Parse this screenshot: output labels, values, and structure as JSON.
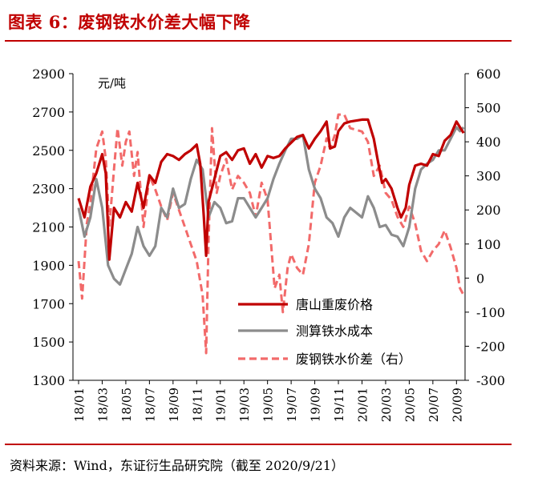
{
  "header": {
    "title": "图表 6：废钢铁水价差大幅下降"
  },
  "footer": {
    "source": "资料来源：Wind，东证衍生品研究院（截至 2020/9/21）"
  },
  "chart_data": {
    "type": "line",
    "left_axis": {
      "unit": "元/吨",
      "ylim": [
        1300,
        2900
      ],
      "ticks": [
        1300,
        1500,
        1700,
        1900,
        2100,
        2300,
        2500,
        2700,
        2900
      ]
    },
    "right_axis": {
      "ylim": [
        -300,
        600
      ],
      "ticks": [
        -300,
        -200,
        -100,
        0,
        100,
        200,
        300,
        400,
        500,
        600
      ]
    },
    "x_ticks": [
      "18/01",
      "18/03",
      "18/05",
      "18/07",
      "18/09",
      "18/11",
      "19/01",
      "19/03",
      "19/05",
      "19/07",
      "19/09",
      "19/11",
      "20/01",
      "20/03",
      "20/05",
      "20/07",
      "20/09"
    ],
    "legend_position": "lower-middle",
    "grid": false,
    "series": [
      {
        "name": "唐山重废价格",
        "axis": "left",
        "color": "#c00000",
        "dash": "solid",
        "points": [
          [
            "18/01",
            2250
          ],
          [
            "18/01.5",
            2150
          ],
          [
            "18/02",
            2310
          ],
          [
            "18/02.5",
            2380
          ],
          [
            "18/03",
            2480
          ],
          [
            "18/03.3",
            2380
          ],
          [
            "18/03.6",
            1930
          ],
          [
            "18/04",
            2200
          ],
          [
            "18/04.5",
            2150
          ],
          [
            "18/05",
            2230
          ],
          [
            "18/05.5",
            2180
          ],
          [
            "18/06",
            2330
          ],
          [
            "18/06.5",
            2200
          ],
          [
            "18/07",
            2370
          ],
          [
            "18/07.5",
            2330
          ],
          [
            "18/08",
            2440
          ],
          [
            "18/08.5",
            2480
          ],
          [
            "18/09",
            2470
          ],
          [
            "18/09.5",
            2450
          ],
          [
            "18/10",
            2480
          ],
          [
            "18/10.5",
            2500
          ],
          [
            "18/11",
            2530
          ],
          [
            "18/11.3",
            2430
          ],
          [
            "18/11.6",
            2160
          ],
          [
            "18/11.8",
            1950
          ],
          [
            "18/12",
            2230
          ],
          [
            "18/12.5",
            2350
          ],
          [
            "19/01",
            2470
          ],
          [
            "19/01.5",
            2490
          ],
          [
            "19/02",
            2450
          ],
          [
            "19/02.5",
            2500
          ],
          [
            "19/03",
            2510
          ],
          [
            "19/03.5",
            2430
          ],
          [
            "19/04",
            2480
          ],
          [
            "19/04.5",
            2410
          ],
          [
            "19/05",
            2470
          ],
          [
            "19/05.5",
            2460
          ],
          [
            "19/06",
            2470
          ],
          [
            "19/06.5",
            2510
          ],
          [
            "19/07",
            2540
          ],
          [
            "19/07.5",
            2570
          ],
          [
            "19/08",
            2580
          ],
          [
            "19/08.5",
            2510
          ],
          [
            "19/09",
            2560
          ],
          [
            "19/09.5",
            2600
          ],
          [
            "19/10",
            2650
          ],
          [
            "19/10.3",
            2510
          ],
          [
            "19/10.7",
            2520
          ],
          [
            "19/11",
            2600
          ],
          [
            "19/11.5",
            2640
          ],
          [
            "19/12",
            2650
          ],
          [
            "20/01",
            2660
          ],
          [
            "20/01.5",
            2660
          ],
          [
            "20/02",
            2560
          ],
          [
            "20/02.3",
            2460
          ],
          [
            "20/02.7",
            2330
          ],
          [
            "20/03",
            2350
          ],
          [
            "20/03.5",
            2300
          ],
          [
            "20/04",
            2200
          ],
          [
            "20/04.3",
            2150
          ],
          [
            "20/04.7",
            2200
          ],
          [
            "20/05",
            2320
          ],
          [
            "20/05.5",
            2420
          ],
          [
            "20/06",
            2430
          ],
          [
            "20/06.5",
            2420
          ],
          [
            "20/07",
            2480
          ],
          [
            "20/07.5",
            2470
          ],
          [
            "20/08",
            2550
          ],
          [
            "20/08.5",
            2580
          ],
          [
            "20/09",
            2650
          ],
          [
            "20/09.3",
            2620
          ],
          [
            "20/09.6",
            2590
          ]
        ]
      },
      {
        "name": "测算铁水成本",
        "axis": "left",
        "color": "#8c8c8c",
        "dash": "solid",
        "points": [
          [
            "18/01",
            2200
          ],
          [
            "18/01.5",
            2050
          ],
          [
            "18/02",
            2150
          ],
          [
            "18/02.5",
            2350
          ],
          [
            "18/03",
            2200
          ],
          [
            "18/03.5",
            1900
          ],
          [
            "18/04",
            1830
          ],
          [
            "18/04.5",
            1800
          ],
          [
            "18/05",
            1880
          ],
          [
            "18/05.5",
            1960
          ],
          [
            "18/06",
            2100
          ],
          [
            "18/06.5",
            2000
          ],
          [
            "18/07",
            1950
          ],
          [
            "18/07.5",
            2000
          ],
          [
            "18/08",
            2200
          ],
          [
            "18/08.5",
            2150
          ],
          [
            "18/09",
            2300
          ],
          [
            "18/09.5",
            2200
          ],
          [
            "18/10",
            2220
          ],
          [
            "18/10.5",
            2350
          ],
          [
            "18/11",
            2450
          ],
          [
            "18/11.5",
            2400
          ],
          [
            "18/12",
            2150
          ],
          [
            "18/12.5",
            2230
          ],
          [
            "19/01",
            2200
          ],
          [
            "19/01.5",
            2120
          ],
          [
            "19/02",
            2130
          ],
          [
            "19/02.5",
            2250
          ],
          [
            "19/03",
            2250
          ],
          [
            "19/03.5",
            2200
          ],
          [
            "19/04",
            2150
          ],
          [
            "19/04.5",
            2200
          ],
          [
            "19/05",
            2250
          ],
          [
            "19/05.5",
            2350
          ],
          [
            "19/06",
            2430
          ],
          [
            "19/06.5",
            2500
          ],
          [
            "19/07",
            2560
          ],
          [
            "19/07.5",
            2560
          ],
          [
            "19/08",
            2580
          ],
          [
            "19/08.5",
            2400
          ],
          [
            "19/09",
            2300
          ],
          [
            "19/09.5",
            2250
          ],
          [
            "19/10",
            2150
          ],
          [
            "19/10.5",
            2120
          ],
          [
            "19/11",
            2050
          ],
          [
            "19/11.5",
            2150
          ],
          [
            "19/12",
            2200
          ],
          [
            "20/01",
            2150
          ],
          [
            "20/01.5",
            2260
          ],
          [
            "20/02",
            2200
          ],
          [
            "20/02.5",
            2100
          ],
          [
            "20/03",
            2110
          ],
          [
            "20/03.5",
            2060
          ],
          [
            "20/04",
            2050
          ],
          [
            "20/04.5",
            2000
          ],
          [
            "20/05",
            2100
          ],
          [
            "20/05.5",
            2300
          ],
          [
            "20/06",
            2400
          ],
          [
            "20/06.5",
            2430
          ],
          [
            "20/07",
            2450
          ],
          [
            "20/07.5",
            2500
          ],
          [
            "20/08",
            2500
          ],
          [
            "20/08.5",
            2560
          ],
          [
            "20/09",
            2620
          ],
          [
            "20/09.3",
            2600
          ],
          [
            "20/09.6",
            2620
          ]
        ]
      },
      {
        "name": "废钢铁水价差（右）",
        "axis": "right",
        "color": "#f26a6a",
        "dash": "dashed",
        "points": [
          [
            "18/01",
            50
          ],
          [
            "18/01.3",
            -60
          ],
          [
            "18/01.7",
            160
          ],
          [
            "18/02",
            220
          ],
          [
            "18/02.5",
            380
          ],
          [
            "18/03",
            430
          ],
          [
            "18/03.3",
            350
          ],
          [
            "18/03.6",
            150
          ],
          [
            "18/04",
            320
          ],
          [
            "18/04.3",
            440
          ],
          [
            "18/04.7",
            330
          ],
          [
            "18/05",
            400
          ],
          [
            "18/05.3",
            430
          ],
          [
            "18/05.7",
            300
          ],
          [
            "18/06",
            370
          ],
          [
            "18/06.5",
            150
          ],
          [
            "18/07",
            300
          ],
          [
            "18/07.5",
            260
          ],
          [
            "18/08",
            210
          ],
          [
            "18/08.5",
            170
          ],
          [
            "18/09",
            250
          ],
          [
            "18/09.5",
            200
          ],
          [
            "18/10",
            150
          ],
          [
            "18/10.5",
            100
          ],
          [
            "18/11",
            50
          ],
          [
            "18/11.5",
            -50
          ],
          [
            "18/11.8",
            -220
          ],
          [
            "18/12",
            100
          ],
          [
            "18/12.3",
            440
          ],
          [
            "18/12.7",
            250
          ],
          [
            "19/01",
            300
          ],
          [
            "19/01.5",
            350
          ],
          [
            "19/02",
            260
          ],
          [
            "19/02.5",
            300
          ],
          [
            "19/03",
            280
          ],
          [
            "19/03.5",
            250
          ],
          [
            "19/04",
            180
          ],
          [
            "19/04.5",
            280
          ],
          [
            "19/05",
            230
          ],
          [
            "19/05.3",
            100
          ],
          [
            "19/05.6",
            -30
          ],
          [
            "19/06",
            10
          ],
          [
            "19/06.3",
            -100
          ],
          [
            "19/06.7",
            30
          ],
          [
            "19/07",
            70
          ],
          [
            "19/07.5",
            30
          ],
          [
            "19/08",
            10
          ],
          [
            "19/08.5",
            100
          ],
          [
            "19/09",
            280
          ],
          [
            "19/09.5",
            330
          ],
          [
            "19/10",
            410
          ],
          [
            "19/10.3",
            380
          ],
          [
            "19/10.7",
            420
          ],
          [
            "19/11",
            480
          ],
          [
            "19/11.5",
            480
          ],
          [
            "19/12",
            440
          ],
          [
            "20/01",
            430
          ],
          [
            "20/01.5",
            400
          ],
          [
            "20/02",
            300
          ],
          [
            "20/02.5",
            330
          ],
          [
            "20/03",
            250
          ],
          [
            "20/03.5",
            230
          ],
          [
            "20/04",
            180
          ],
          [
            "20/04.5",
            150
          ],
          [
            "20/05",
            210
          ],
          [
            "20/05.5",
            160
          ],
          [
            "20/06",
            80
          ],
          [
            "20/06.5",
            50
          ],
          [
            "20/07",
            80
          ],
          [
            "20/07.5",
            100
          ],
          [
            "20/08",
            140
          ],
          [
            "20/08.5",
            90
          ],
          [
            "20/09",
            30
          ],
          [
            "20/09.3",
            -30
          ],
          [
            "20/09.6",
            -50
          ]
        ]
      }
    ]
  }
}
